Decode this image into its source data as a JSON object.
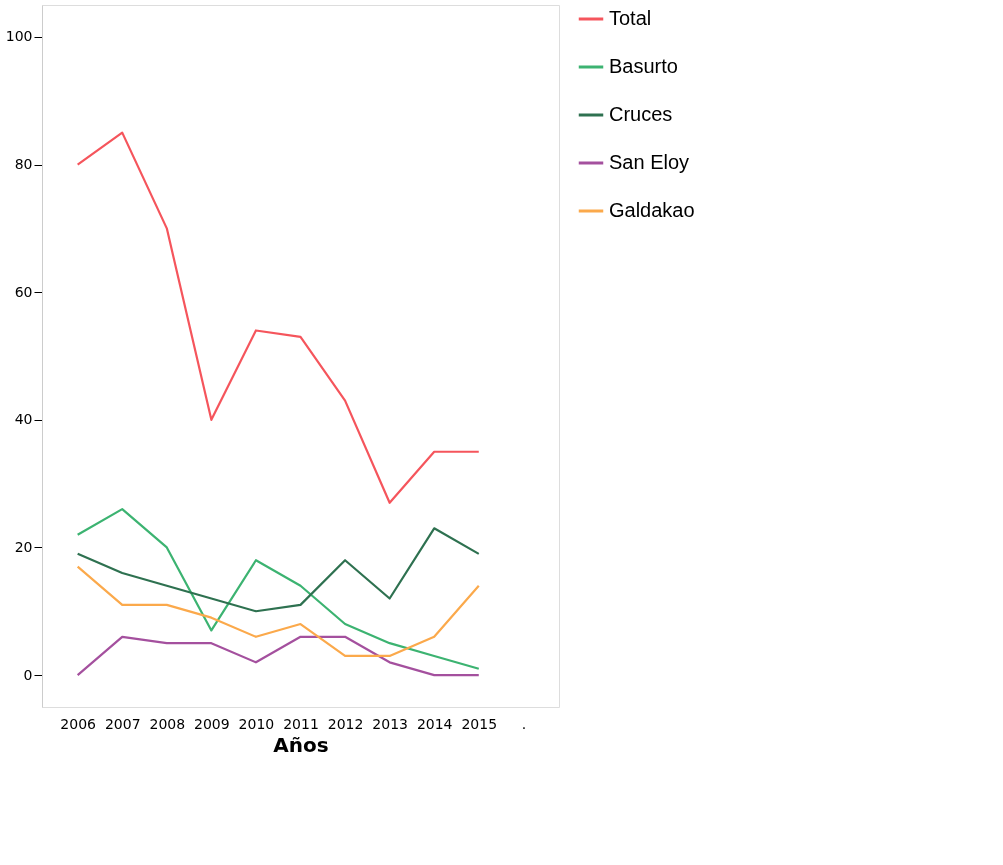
{
  "chart_data": {
    "type": "line",
    "xlabel": "Años",
    "categories": [
      "2006",
      "2007",
      "2008",
      "2009",
      "2010",
      "2011",
      "2012",
      "2013",
      "2014",
      "2015",
      "."
    ],
    "series": [
      {
        "name": "Total",
        "color": "#f5555c",
        "values": [
          80,
          85,
          70,
          40,
          54,
          53,
          43,
          27,
          35,
          35,
          null
        ]
      },
      {
        "name": "Basurto",
        "color": "#3cb371",
        "values": [
          22,
          26,
          20,
          7,
          18,
          14,
          8,
          5,
          3,
          1,
          null
        ]
      },
      {
        "name": "Cruces",
        "color": "#2e7150",
        "values": [
          19,
          16,
          14,
          12,
          10,
          11,
          18,
          12,
          23,
          19,
          null
        ]
      },
      {
        "name": "San Eloy",
        "color": "#a4509e",
        "values": [
          0,
          6,
          5,
          5,
          2,
          6,
          6,
          2,
          0,
          0,
          null
        ]
      },
      {
        "name": "Galdakao",
        "color": "#fba94b",
        "values": [
          17,
          11,
          11,
          9,
          6,
          8,
          3,
          3,
          6,
          14,
          null
        ]
      }
    ],
    "ylim": [
      -5,
      105
    ],
    "yticks": [
      0,
      20,
      40,
      60,
      80,
      100
    ],
    "grid": false,
    "legend": "top right",
    "marker": "none",
    "line_style": "solid"
  }
}
